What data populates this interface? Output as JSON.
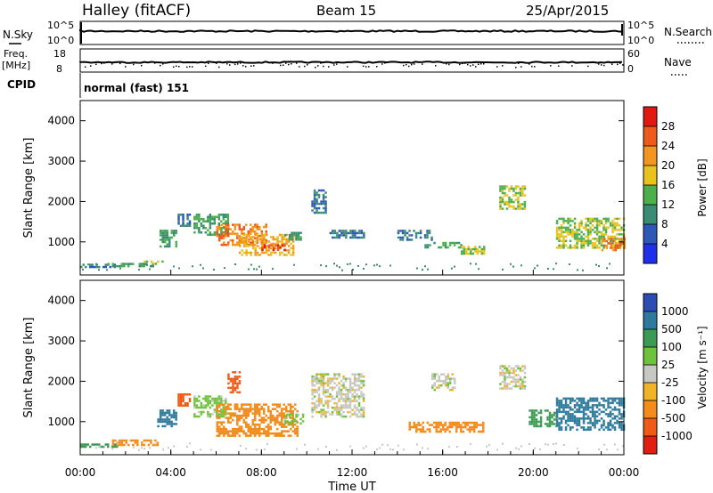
{
  "header": {
    "title": "Halley (fitACF)",
    "beam": "Beam 15",
    "date": "25/Apr/2015"
  },
  "top_panels": {
    "nsky_label": "N.Sky",
    "nsky_tick_top": "10^5",
    "nsky_tick_bottom": "10^0",
    "nsearch_label": "N.Search",
    "freq_label": "Freq.",
    "freq_unit": "[MHz]",
    "freq_tick_top": "18",
    "freq_tick_bottom": "8",
    "nave_tick_top": "60",
    "nave_tick_bottom": "0",
    "nave_label": "Nave",
    "cpid_label": "CPID",
    "cpid_value": "normal (fast) 151"
  },
  "axes": {
    "ylabel": "Slant Range [km]",
    "xlabel": "Time UT",
    "yticks": [
      "1000",
      "2000",
      "3000",
      "4000"
    ],
    "xticks": [
      "00:00",
      "04:00",
      "08:00",
      "12:00",
      "16:00",
      "20:00",
      "00:00"
    ]
  },
  "power_colorbar": {
    "label": "Power [dB]",
    "ticks": [
      "4",
      "8",
      "12",
      "16",
      "20",
      "24",
      "28"
    ],
    "colors": [
      "#1f2ee8",
      "#2e58b8",
      "#3a8c74",
      "#4bb04b",
      "#e8c21e",
      "#f2961f",
      "#ee5a1e",
      "#e01a12"
    ]
  },
  "velocity_colorbar": {
    "label": "Velocity [m s⁻¹]",
    "ticks": [
      "1000",
      "500",
      "100",
      "25",
      "-25",
      "-100",
      "-500",
      "-1000"
    ],
    "colors": [
      "#2a4cb4",
      "#2e7a9c",
      "#3d9a55",
      "#6fc23c",
      "#c8c8c2",
      "#f0b428",
      "#f28c1c",
      "#ef5a16",
      "#e01e12"
    ]
  },
  "chart_data": [
    {
      "type": "heatmap",
      "title": "Power",
      "xlabel": "Time UT",
      "ylabel": "Slant Range [km]",
      "xlim": [
        0,
        24
      ],
      "ylim": [
        180,
        4500
      ],
      "value_label": "Power [dB]",
      "value_range": [
        0,
        30
      ],
      "echo_regions": [
        {
          "t": [
            0.0,
            1.6
          ],
          "r": [
            360,
            460
          ],
          "value": 8
        },
        {
          "t": [
            1.2,
            3.2
          ],
          "r": [
            380,
            480
          ],
          "value": 12
        },
        {
          "t": [
            2.8,
            3.6
          ],
          "r": [
            450,
            540
          ],
          "value": 16
        },
        {
          "t": [
            3.5,
            4.2
          ],
          "r": [
            900,
            1300
          ],
          "value": 12
        },
        {
          "t": [
            4.3,
            4.8
          ],
          "r": [
            1400,
            1700
          ],
          "value": 8
        },
        {
          "t": [
            5.0,
            6.5
          ],
          "r": [
            1150,
            1700
          ],
          "value": 12
        },
        {
          "t": [
            6.0,
            8.2
          ],
          "r": [
            900,
            1450
          ],
          "value": 24
        },
        {
          "t": [
            7.0,
            9.4
          ],
          "r": [
            700,
            1200
          ],
          "value": 20
        },
        {
          "t": [
            8.0,
            9.0
          ],
          "r": [
            780,
            940
          ],
          "value": 28
        },
        {
          "t": [
            9.0,
            9.7
          ],
          "r": [
            1050,
            1250
          ],
          "value": 12
        },
        {
          "t": [
            10.2,
            10.8
          ],
          "r": [
            1700,
            2300
          ],
          "value": 8
        },
        {
          "t": [
            11.0,
            12.5
          ],
          "r": [
            1100,
            1300
          ],
          "value": 8
        },
        {
          "t": [
            14.0,
            15.5
          ],
          "r": [
            1050,
            1300
          ],
          "value": 8
        },
        {
          "t": [
            15.2,
            16.8
          ],
          "r": [
            850,
            1000
          ],
          "value": 12
        },
        {
          "t": [
            16.8,
            17.8
          ],
          "r": [
            700,
            900
          ],
          "value": 16
        },
        {
          "t": [
            18.5,
            19.6
          ],
          "r": [
            1800,
            2400
          ],
          "value": 16
        },
        {
          "t": [
            21.0,
            24.0
          ],
          "r": [
            850,
            1600
          ],
          "value": 16
        },
        {
          "t": [
            23.0,
            24.0
          ],
          "r": [
            800,
            1100
          ],
          "value": 24
        }
      ]
    },
    {
      "type": "heatmap",
      "title": "Velocity",
      "xlabel": "Time UT",
      "ylabel": "Slant Range [km]",
      "xlim": [
        0,
        24
      ],
      "ylim": [
        180,
        4500
      ],
      "value_label": "Velocity [m s⁻¹]",
      "value_range": [
        -1000,
        1000
      ],
      "echo_regions": [
        {
          "t": [
            0.0,
            1.6
          ],
          "r": [
            360,
            460
          ],
          "value": 100
        },
        {
          "t": [
            1.4,
            3.4
          ],
          "r": [
            400,
            560
          ],
          "value": -100
        },
        {
          "t": [
            3.4,
            4.2
          ],
          "r": [
            900,
            1300
          ],
          "value": 500
        },
        {
          "t": [
            4.3,
            4.8
          ],
          "r": [
            1400,
            1700
          ],
          "value": -500
        },
        {
          "t": [
            5.0,
            6.4
          ],
          "r": [
            1150,
            1650
          ],
          "value": 25
        },
        {
          "t": [
            6.0,
            9.6
          ],
          "r": [
            650,
            1450
          ],
          "value": -100
        },
        {
          "t": [
            6.5,
            7.0
          ],
          "r": [
            1750,
            2250
          ],
          "value": -500
        },
        {
          "t": [
            9.0,
            9.8
          ],
          "r": [
            950,
            1200
          ],
          "value": 25
        },
        {
          "t": [
            10.2,
            12.5
          ],
          "r": [
            1100,
            2200
          ],
          "value": 0
        },
        {
          "t": [
            14.5,
            17.8
          ],
          "r": [
            750,
            1000
          ],
          "value": -100
        },
        {
          "t": [
            15.5,
            16.5
          ],
          "r": [
            1800,
            2200
          ],
          "value": 0
        },
        {
          "t": [
            18.5,
            19.6
          ],
          "r": [
            1800,
            2400
          ],
          "value": 0
        },
        {
          "t": [
            19.8,
            21.0
          ],
          "r": [
            900,
            1300
          ],
          "value": 100
        },
        {
          "t": [
            21.0,
            24.0
          ],
          "r": [
            800,
            1600
          ],
          "value": 500
        }
      ]
    }
  ]
}
